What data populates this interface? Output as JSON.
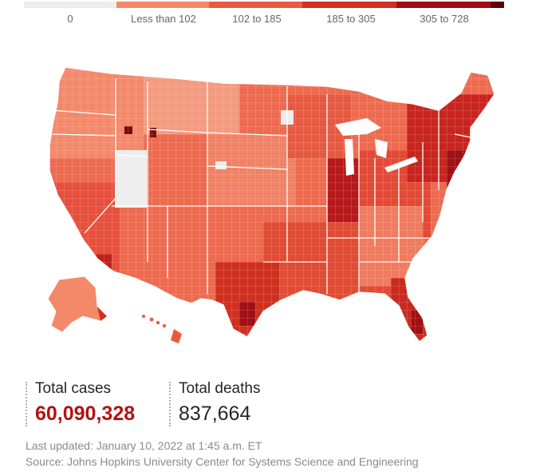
{
  "legend": {
    "items": [
      {
        "label": "0",
        "color": "#ededed"
      },
      {
        "label": "Less than 102",
        "color": "#f4896a"
      },
      {
        "label": "102 to 185",
        "color": "#ea5a40"
      },
      {
        "label": "185 to 305",
        "color": "#d12f22"
      },
      {
        "label": "305 to 728",
        "color": "#a00f14"
      }
    ],
    "overflow_color": "#5e0009"
  },
  "map": {
    "regions": [
      "contiguous-us",
      "alaska",
      "hawaii"
    ],
    "colors": {
      "state_border": "#ffffff",
      "darkest": "#7a0a0e"
    }
  },
  "stats": {
    "cases": {
      "label": "Total cases",
      "value": "60,090,328",
      "color": "#b31212"
    },
    "deaths": {
      "label": "Total deaths",
      "value": "837,664"
    }
  },
  "footer": {
    "updated": "Last updated: January 10, 2022 at 1:45 a.m. ET",
    "source": "Source: Johns Hopkins University Center for Systems Science and Engineering"
  }
}
